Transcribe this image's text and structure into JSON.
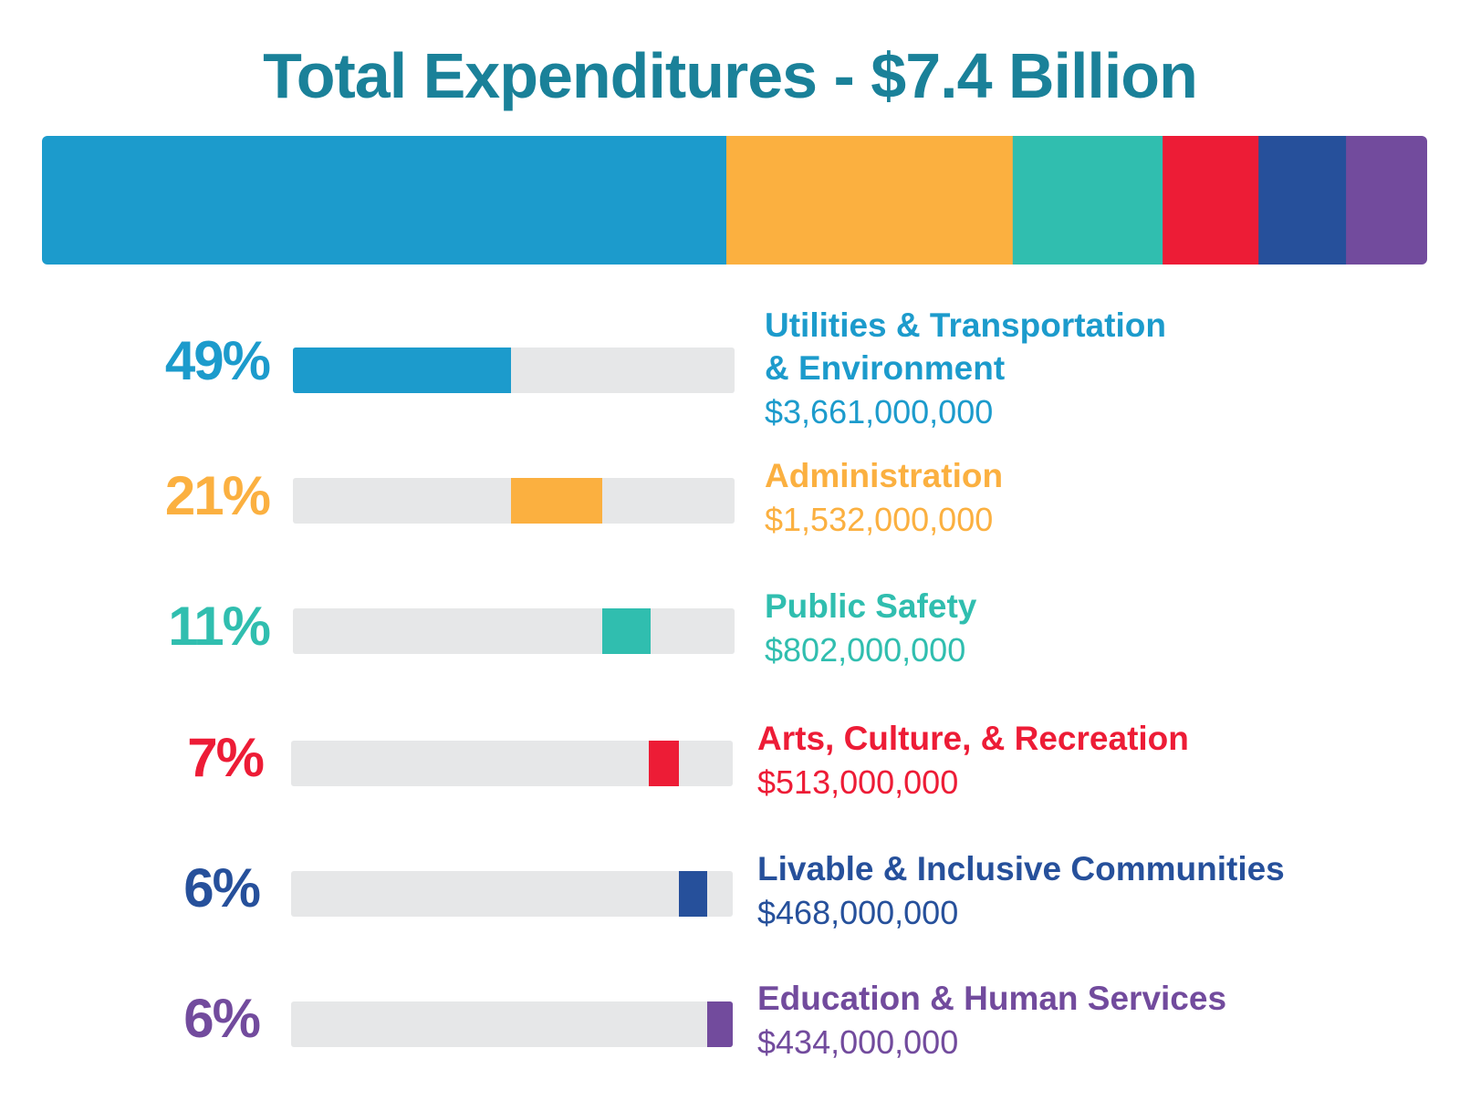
{
  "colors": {
    "title": "#1a8199",
    "track": "#e6e7e8"
  },
  "chart_data": {
    "type": "bar",
    "title": "Total Expenditures - $7.4 Billion",
    "total": 7410000000,
    "categories": [
      "Utilities & Transportation & Environment",
      "Administration",
      "Public Safety",
      "Arts, Culture, & Recreation",
      "Livable & Inclusive Communities",
      "Education & Human Services"
    ],
    "values": [
      3661000000,
      1532000000,
      802000000,
      513000000,
      468000000,
      434000000
    ],
    "items": [
      {
        "name_line1": "Utilities & Transportation",
        "name_line2": "& Environment",
        "percent_label": "49%",
        "amount_label": "$3,661,000,000",
        "value": 3661000000,
        "color": "#1c9bcc"
      },
      {
        "name_line1": "Administration",
        "name_line2": "",
        "percent_label": "21%",
        "amount_label": "$1,532,000,000",
        "value": 1532000000,
        "color": "#fbb040"
      },
      {
        "name_line1": "Public Safety",
        "name_line2": "",
        "percent_label": "11%",
        "amount_label": "$802,000,000",
        "value": 802000000,
        "color": "#30beaf"
      },
      {
        "name_line1": "Arts, Culture, & Recreation",
        "name_line2": "",
        "percent_label": "7%",
        "amount_label": "$513,000,000",
        "value": 513000000,
        "color": "#ed1c36"
      },
      {
        "name_line1": "Livable & Inclusive Communities",
        "name_line2": "",
        "percent_label": "6%",
        "amount_label": "$468,000,000",
        "value": 468000000,
        "color": "#26509b"
      },
      {
        "name_line1": "Education & Human Services",
        "name_line2": "",
        "percent_label": "6%",
        "amount_label": "$434,000,000",
        "value": 434000000,
        "color": "#724b9d"
      }
    ]
  }
}
